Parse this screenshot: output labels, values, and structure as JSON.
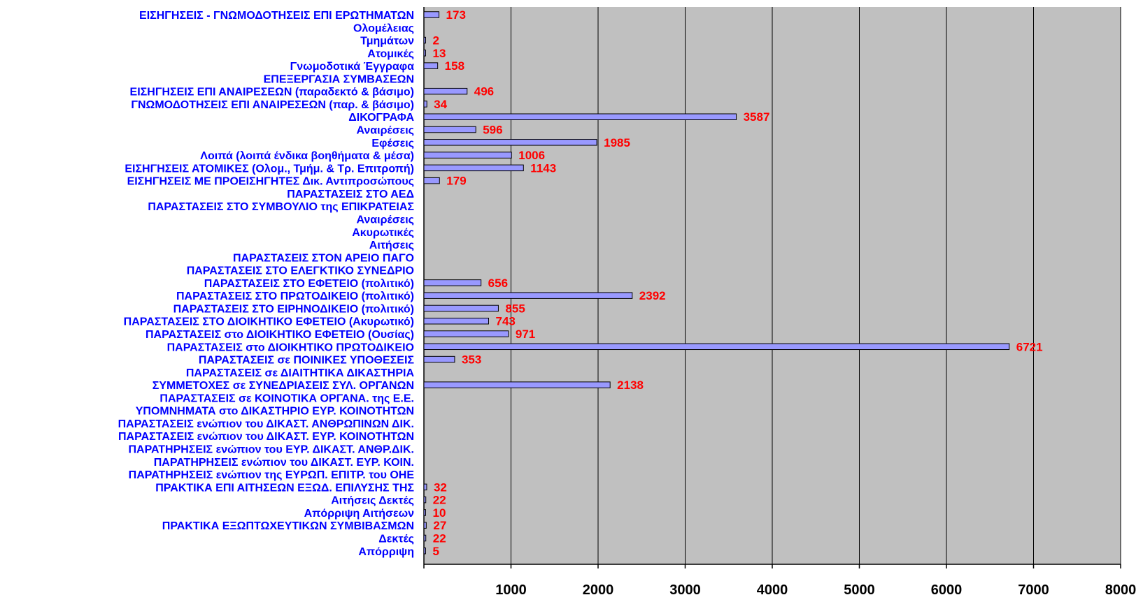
{
  "chart_data": {
    "type": "bar",
    "orientation": "horizontal",
    "title": "",
    "xlabel": "",
    "ylabel": "",
    "xlim": [
      0,
      8000
    ],
    "xticks": [
      1000,
      2000,
      3000,
      4000,
      5000,
      6000,
      7000,
      8000
    ],
    "grid": true,
    "legend": "none",
    "colors": {
      "plot_background": "#c0c0c0",
      "bar_fill": "#9999ff",
      "bar_stroke": "#000000",
      "category_label": "#0000ff",
      "value_label": "#ff0000",
      "gridline": "#000000"
    },
    "categories": [
      "ΕΙΣΗΓΗΣΕΙΣ - ΓΝΩΜΟΔΟΤΗΣΕΙΣ ΕΠΙ ΕΡΩΤΗΜΑΤΩΝ",
      "Ολομέλειας",
      "Τμημάτων",
      "Ατομικές",
      "Γνωμοδοτικά Έγγραφα",
      "ΕΠΕΞΕΡΓΑΣΙΑ ΣΥΜΒΑΣΕΩΝ",
      "ΕΙΣΗΓΗΣΕΙΣ ΕΠΙ ΑΝΑΙΡΕΣΕΩΝ (παραδεκτό & βάσιμο)",
      "ΓΝΩΜΟΔΟΤΗΣΕΙΣ ΕΠΙ ΑΝΑΙΡΕΣΕΩΝ (παρ. & βάσιμο)",
      "ΔΙΚΟΓΡΑΦΑ",
      "Αναιρέσεις",
      "Εφέσεις",
      "Λοιπά (λοιπά ένδικα βοηθήματα & μέσα)",
      "ΕΙΣΗΓΗΣΕΙΣ ΑΤΟΜΙΚΕΣ (Ολομ., Τμήμ. & Τρ. Επιτροπή)",
      "ΕΙΣΗΓΗΣΕΙΣ ΜΕ ΠΡΟΕΙΣΗΓΗΤΕΣ Δικ. Αντιπροσώπους",
      "ΠΑΡΑΣΤΑΣΕΙΣ ΣΤΟ ΑΕΔ",
      "ΠΑΡΑΣΤΑΣΕΙΣ ΣΤΟ ΣΥΜΒΟΥΛΙΟ της ΕΠΙΚΡΑΤΕΙΑΣ",
      "Αναιρέσεις",
      "Ακυρωτικές",
      "Αιτήσεις",
      "ΠΑΡΑΣΤΑΣΕΙΣ ΣΤΟΝ ΑΡΕΙΟ ΠΑΓΟ",
      "ΠΑΡΑΣΤΑΣΕΙΣ ΣΤΟ ΕΛΕΓΚΤΙΚΟ ΣΥΝΕΔΡΙΟ",
      "ΠΑΡΑΣΤΑΣΕΙΣ ΣΤΟ ΕΦΕΤΕΙΟ (πολιτικό)",
      "ΠΑΡΑΣΤΑΣΕΙΣ ΣΤΟ ΠΡΩΤΟΔΙΚΕΙΟ (πολιτικό)",
      "ΠΑΡΑΣΤΑΣΕΙΣ ΣΤΟ ΕΙΡΗΝΟΔΙΚΕΙΟ (πολιτικό)",
      "ΠΑΡΑΣΤΑΣΕΙΣ ΣΤΟ ΔΙΟΙΚΗΤΙΚΟ ΕΦΕΤΕΙΟ (Ακυρωτικό)",
      "ΠΑΡΑΣΤΑΣΕΙΣ στο ΔΙΟΙΚΗΤΙΚΟ ΕΦΕΤΕΙΟ (Ουσίας)",
      "ΠΑΡΑΣΤΑΣΕΙΣ στο ΔΙΟΙΚΗΤΙΚΟ ΠΡΩΤΟΔΙΚΕΙΟ",
      "ΠΑΡΑΣΤΑΣΕΙΣ σε ΠΟΙΝΙΚΕΣ ΥΠΟΘΕΣΕΙΣ",
      "ΠΑΡΑΣΤΑΣΕΙΣ σε ΔΙΑΙΤΗΤΙΚΑ ΔΙΚΑΣΤΗΡΙΑ",
      "ΣΥΜΜΕΤΟΧΕΣ σε ΣΥΝΕΔΡΙΑΣΕΙΣ ΣΥΛ. ΟΡΓΑΝΩΝ",
      "ΠΑΡΑΣΤΑΣΕΙΣ σε ΚΟΙΝΟΤΙΚΑ ΟΡΓΑΝΑ. της Ε.Ε.",
      "ΥΠΟΜΝΗΜΑΤΑ στο ΔΙΚΑΣΤΗΡΙΟ ΕΥΡ. ΚΟΙΝΟΤΗΤΩΝ",
      "ΠΑΡΑΣΤΑΣΕΙΣ ενώπιον του ΔΙΚΑΣΤ. ΑΝΘΡΩΠΙΝΩΝ ΔΙΚ.",
      "ΠΑΡΑΣΤΑΣΕΙΣ ενώπιον του ΔΙΚΑΣΤ. ΕΥΡ. ΚΟΙΝΟΤΗΤΩΝ",
      "ΠΑΡΑΤΗΡΗΣΕΙΣ ενώπιον του ΕΥΡ. ΔΙΚΑΣΤ. ΑΝΘΡ.ΔΙΚ.",
      "ΠΑΡΑΤΗΡΗΣΕΙΣ ενώπιον του ΔΙΚΑΣΤ. ΕΥΡ. ΚΟΙΝ.",
      "ΠΑΡΑΤΗΡΗΣΕΙΣ ενώπιον της ΕΥΡΩΠ. ΕΠΙΤΡ. του ΟΗΕ",
      "ΠΡΑΚΤΙΚΑ ΕΠΙ ΑΙΤΗΣΕΩΝ ΕΞΩΔ. ΕΠΙΛΥΣΗΣ ΤΗΣ",
      "Αιτήσεις Δεκτές",
      "Απόρριψη Αιτήσεων",
      "ΠΡΑΚΤΙΚΑ ΕΞΩΠΤΩΧΕΥΤΙΚΩΝ ΣΥΜΒΙΒΑΣΜΩΝ",
      "Δεκτές",
      "Απόρριψη"
    ],
    "values": [
      173,
      null,
      2,
      13,
      158,
      null,
      496,
      34,
      3587,
      596,
      1985,
      1006,
      1143,
      179,
      null,
      null,
      null,
      null,
      null,
      null,
      null,
      656,
      2392,
      855,
      743,
      971,
      6721,
      353,
      null,
      2138,
      null,
      null,
      null,
      null,
      null,
      null,
      null,
      32,
      22,
      10,
      27,
      22,
      5
    ],
    "data_labels": [
      "173",
      "",
      "2",
      "13",
      "158",
      "",
      "496",
      "34",
      "3587",
      "596",
      "1985",
      "1006",
      "1143",
      "179",
      "",
      "",
      "",
      "",
      "",
      "",
      "",
      "656",
      "2392",
      "855",
      "743",
      "971",
      "6721",
      "353",
      "",
      "2138",
      "",
      "",
      "",
      "",
      "",
      "",
      "",
      "32",
      "22",
      "10",
      "27",
      "22",
      "5"
    ]
  }
}
